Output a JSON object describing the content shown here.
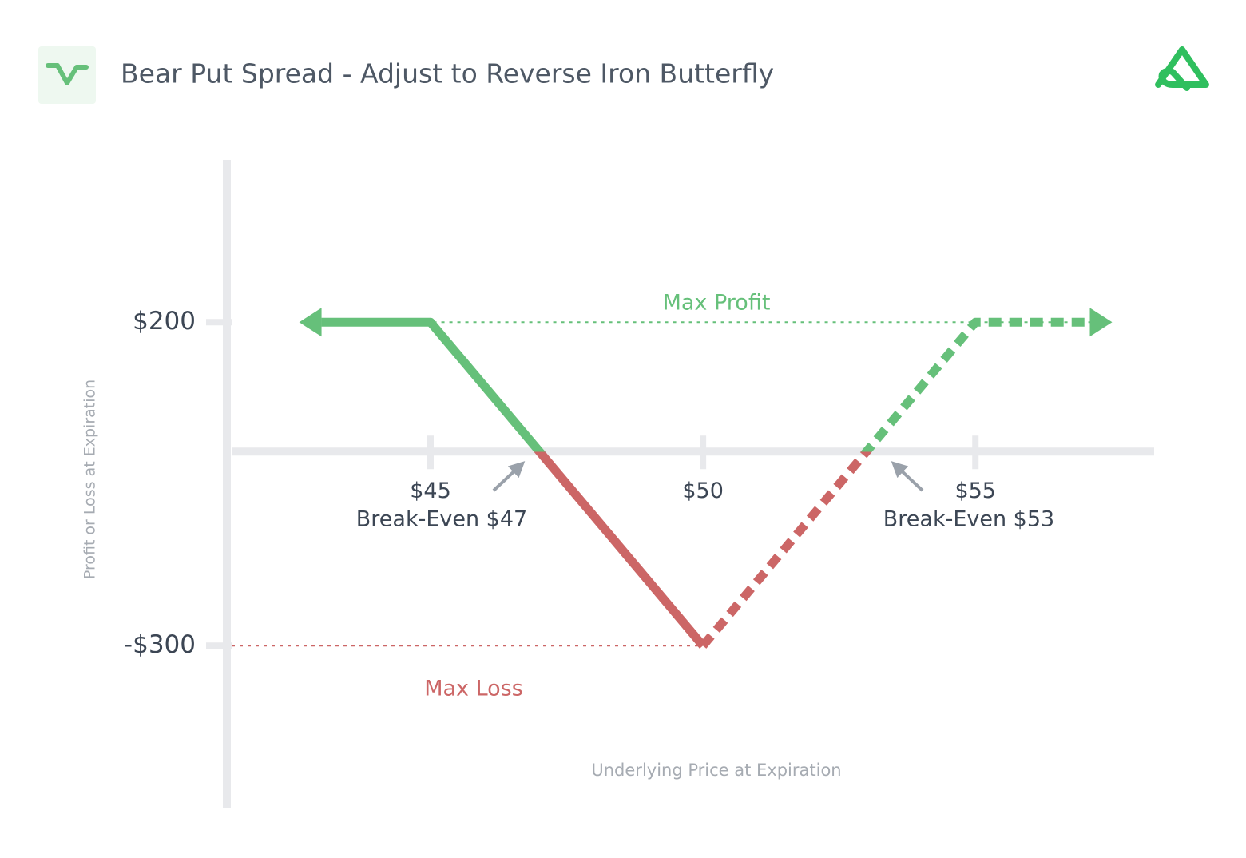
{
  "chart_data": {
    "type": "line",
    "title": "Bear Put Spread - Adjust to Reverse Iron Butterfly",
    "xlabel": "Underlying Price at Expiration",
    "ylabel": "Profit or Loss at Expiration",
    "xlim": [
      41.35,
      58.28
    ],
    "ylim": [
      -549,
      451
    ],
    "xticks": [
      {
        "value": 45,
        "label": "$45"
      },
      {
        "value": 50,
        "label": "$50"
      },
      {
        "value": 55,
        "label": "$55"
      }
    ],
    "yticks": [
      {
        "value": 200,
        "label": "$200"
      },
      {
        "value": -300,
        "label": "-$300"
      }
    ],
    "profit_color": "#66c07a",
    "loss_color": "#cc6666",
    "series": [
      {
        "x": [
          43,
          45,
          47,
          50
        ],
        "values": [
          200,
          200,
          0,
          -300
        ],
        "dashed": false
      },
      {
        "x": [
          50,
          53,
          55,
          57.1
        ],
        "values": [
          -300,
          0,
          200,
          200
        ],
        "dashed": true
      }
    ],
    "max_profit_label": "Max Profit",
    "max_loss_label": "Max Loss",
    "break_even_labels": [
      "Break-Even $47",
      "Break-Even $53"
    ]
  }
}
